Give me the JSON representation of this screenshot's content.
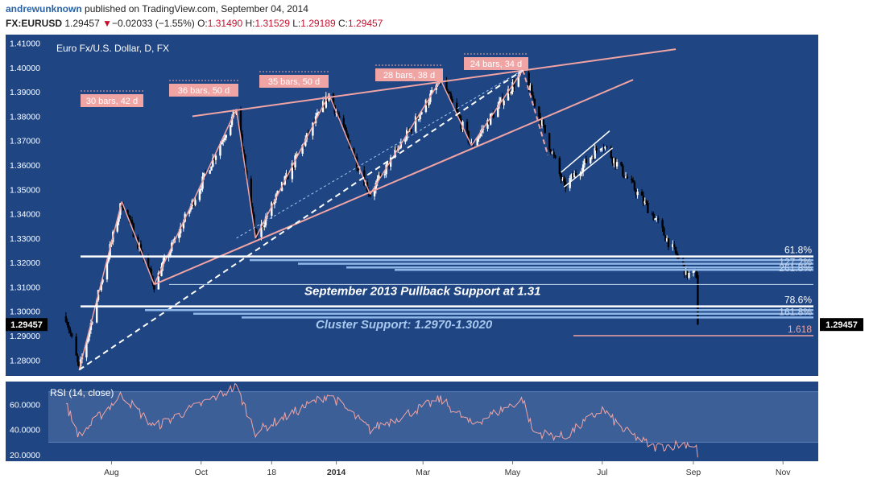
{
  "header": {
    "author": "andrewunknown",
    "published_text": "published on TradingView.com, September 04, 2014",
    "symbol": "FX:EURUSD",
    "last": "1.29457",
    "change_arrow": "▼",
    "change": "−0.02033 (−1.55%)",
    "open_label": "O:",
    "open": "1.31490",
    "high_label": "H:",
    "high": "1.31529",
    "low_label": "L:",
    "low": "1.29189",
    "close_label": "C:",
    "close": "1.29457"
  },
  "colors": {
    "background": "#1f4583",
    "candle_up": "#ffffff",
    "candle_down": "#000000",
    "pattern": "#f0a4a4",
    "fib_line": "#8fb8e8",
    "support_line": "#ffffff",
    "rsi_line": "#f0a4a4",
    "rsi_band": "#3d5f98"
  },
  "chart_data": [
    {
      "type": "candlestick",
      "title": "Euro Fx/U.S. Dollar, D, FX",
      "x_ticks": [
        "Aug",
        "Oct",
        "18",
        "2014",
        "Mar",
        "May",
        "Jul",
        "Sep",
        "Nov"
      ],
      "y_ticks": [
        "1.41000",
        "1.40000",
        "1.39000",
        "1.38000",
        "1.37000",
        "1.36000",
        "1.35000",
        "1.34000",
        "1.33000",
        "1.32000",
        "1.31000",
        "1.30000",
        "1.29000",
        "1.28000"
      ],
      "ylim": [
        1.2735,
        1.4135
      ],
      "last_price_label": "1.29457",
      "last_price": 1.29457,
      "key_points": [
        {
          "date": "2013-07-01",
          "price": 1.298
        },
        {
          "date": "2013-07-10",
          "price": 1.276
        },
        {
          "date": "2013-08-08",
          "price": 1.345
        },
        {
          "date": "2013-08-30",
          "price": 1.311
        },
        {
          "date": "2013-10-25",
          "price": 1.383
        },
        {
          "date": "2013-11-07",
          "price": 1.33
        },
        {
          "date": "2013-12-27",
          "price": 1.389
        },
        {
          "date": "2014-01-24",
          "price": 1.348
        },
        {
          "date": "2014-03-13",
          "price": 1.395
        },
        {
          "date": "2014-04-03",
          "price": 1.368
        },
        {
          "date": "2014-05-08",
          "price": 1.399
        },
        {
          "date": "2014-06-05",
          "price": 1.351
        },
        {
          "date": "2014-07-01",
          "price": 1.369
        },
        {
          "date": "2014-08-05",
          "price": 1.339
        },
        {
          "date": "2014-08-28",
          "price": 1.315
        },
        {
          "date": "2014-09-03",
          "price": 1.315
        },
        {
          "date": "2014-09-04",
          "price": 1.2946
        }
      ],
      "annotations": {
        "bar_counts": [
          "30 bars, 42 d",
          "36 bars, 50 d",
          "35 bars, 50 d",
          "28 bars, 38 d",
          "24 bars, 34 d"
        ],
        "support_text": "September 2013 Pullback Support at 1.31",
        "cluster_text": "Cluster Support: 1.2970-1.3020",
        "fib_upper": [
          "61.8%",
          "127.2%",
          "261.8%"
        ],
        "fib_lower": [
          "78.6%",
          "161.8%"
        ],
        "fib_extension": "1.618"
      },
      "levels": [
        {
          "price": 1.3225,
          "label": "61.8%"
        },
        {
          "price": 1.321
        },
        {
          "price": 1.3195
        },
        {
          "price": 1.318
        },
        {
          "price": 1.317
        },
        {
          "price": 1.311
        },
        {
          "price": 1.302,
          "label": "78.6%"
        },
        {
          "price": 1.3005
        },
        {
          "price": 1.299
        },
        {
          "price": 1.2975
        },
        {
          "price": 1.29,
          "label": "1.618"
        }
      ]
    },
    {
      "type": "line",
      "title": "RSI (14, close)",
      "y_ticks": [
        "60.0000",
        "40.0000",
        "20.0000"
      ],
      "ylim": [
        15,
        78
      ],
      "band": [
        30,
        70
      ],
      "key_points": [
        {
          "date": "2013-07-01",
          "value": 60
        },
        {
          "date": "2013-07-10",
          "value": 35
        },
        {
          "date": "2013-08-08",
          "value": 68
        },
        {
          "date": "2013-08-30",
          "value": 42
        },
        {
          "date": "2013-10-25",
          "value": 74
        },
        {
          "date": "2013-11-07",
          "value": 38
        },
        {
          "date": "2013-12-27",
          "value": 68
        },
        {
          "date": "2014-01-24",
          "value": 40
        },
        {
          "date": "2014-03-13",
          "value": 64
        },
        {
          "date": "2014-04-03",
          "value": 44
        },
        {
          "date": "2014-05-08",
          "value": 64
        },
        {
          "date": "2014-05-15",
          "value": 38
        },
        {
          "date": "2014-06-05",
          "value": 34
        },
        {
          "date": "2014-07-01",
          "value": 56
        },
        {
          "date": "2014-07-15",
          "value": 40
        },
        {
          "date": "2014-08-05",
          "value": 26
        },
        {
          "date": "2014-08-28",
          "value": 29
        },
        {
          "date": "2014-09-03",
          "value": 27
        },
        {
          "date": "2014-09-04",
          "value": 18
        }
      ]
    }
  ]
}
